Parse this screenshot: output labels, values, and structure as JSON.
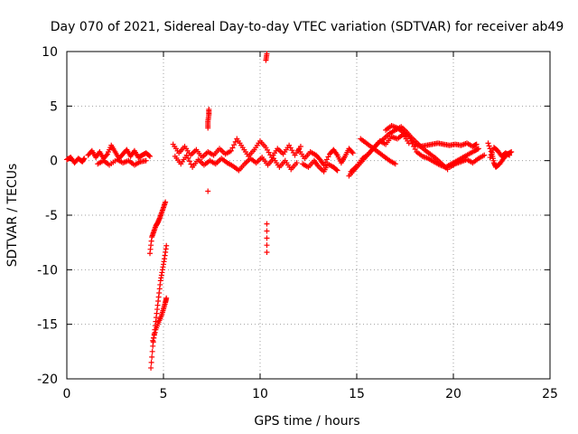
{
  "chart_data": {
    "type": "scatter",
    "title": "Day 070 of 2021, Sidereal Day-to-day VTEC variation (SDTVAR) for receiver ab49",
    "xlabel": "GPS time / hours",
    "ylabel": "SDTVAR / TECUs",
    "xlim": [
      0,
      25
    ],
    "ylim": [
      -20,
      10
    ],
    "x_ticks": [
      "0",
      "5",
      "10",
      "15",
      "20",
      "25"
    ],
    "y_ticks": [
      "-20",
      "-15",
      "-10",
      "-5",
      "0",
      "5",
      "10"
    ],
    "grid": true,
    "legend": "none",
    "marker": "plus",
    "colors": {
      "series": "#ff0000",
      "grid": "#a0a0a0",
      "axis": "#000000"
    },
    "series": [
      {
        "segments": [
          [
            [
              0.0,
              0.1
            ],
            [
              0.2,
              0.3
            ],
            [
              0.4,
              -0.2
            ],
            [
              0.6,
              0.2
            ],
            [
              0.8,
              -0.1
            ],
            [
              0.9,
              0.2
            ]
          ],
          [
            [
              1.1,
              0.5
            ],
            [
              1.3,
              0.9
            ],
            [
              1.5,
              0.3
            ],
            [
              1.7,
              0.8
            ],
            [
              1.9,
              0.2
            ],
            [
              2.1,
              0.6
            ],
            [
              2.3,
              1.4
            ],
            [
              2.5,
              0.8
            ],
            [
              2.7,
              0.2
            ],
            [
              2.9,
              0.6
            ],
            [
              3.1,
              1.0
            ],
            [
              3.3,
              0.4
            ],
            [
              3.5,
              0.9
            ],
            [
              3.7,
              0.3
            ],
            [
              3.9,
              0.5
            ],
            [
              4.1,
              0.7
            ],
            [
              4.3,
              0.4
            ]
          ],
          [
            [
              1.6,
              -0.3
            ],
            [
              1.9,
              0.0
            ],
            [
              2.2,
              -0.4
            ],
            [
              2.6,
              0.1
            ],
            [
              2.9,
              -0.2
            ],
            [
              3.2,
              0.0
            ],
            [
              3.5,
              -0.4
            ],
            [
              3.8,
              -0.1
            ],
            [
              4.1,
              0.0
            ]
          ],
          [
            [
              4.3,
              -8.5
            ],
            [
              4.4,
              -7.0
            ],
            [
              4.5,
              -6.5
            ],
            [
              4.6,
              -6.0
            ],
            [
              4.7,
              -5.7
            ],
            [
              4.8,
              -5.3
            ],
            [
              4.9,
              -4.8
            ],
            [
              5.0,
              -4.3
            ],
            [
              5.1,
              -3.8
            ]
          ],
          [
            [
              4.35,
              -19.0
            ],
            [
              4.45,
              -17.0
            ],
            [
              4.55,
              -15.5
            ],
            [
              4.65,
              -14.0
            ],
            [
              4.75,
              -12.5
            ],
            [
              4.85,
              -11.0
            ],
            [
              4.95,
              -10.0
            ],
            [
              5.05,
              -9.0
            ],
            [
              5.15,
              -7.8
            ]
          ],
          [
            [
              4.45,
              -16.5
            ],
            [
              4.6,
              -15.5
            ],
            [
              4.75,
              -14.8
            ],
            [
              4.9,
              -14.2
            ],
            [
              5.0,
              -13.6
            ],
            [
              5.1,
              -13.0
            ],
            [
              5.15,
              -12.6
            ]
          ],
          [
            [
              5.5,
              1.5
            ],
            [
              5.8,
              0.7
            ],
            [
              6.1,
              1.3
            ],
            [
              6.4,
              0.5
            ],
            [
              6.7,
              1.0
            ],
            [
              7.0,
              0.3
            ],
            [
              7.3,
              0.8
            ],
            [
              7.6,
              0.5
            ],
            [
              7.9,
              1.1
            ],
            [
              8.2,
              0.6
            ],
            [
              8.5,
              0.9
            ],
            [
              8.8,
              2.0
            ],
            [
              9.1,
              1.2
            ],
            [
              9.4,
              0.4
            ],
            [
              9.7,
              1.0
            ],
            [
              10.0,
              1.8
            ],
            [
              10.3,
              1.2
            ],
            [
              10.6,
              0.3
            ],
            [
              10.9,
              1.1
            ],
            [
              11.2,
              0.6
            ],
            [
              11.5,
              1.4
            ],
            [
              11.8,
              0.5
            ],
            [
              12.1,
              1.3
            ]
          ],
          [
            [
              5.6,
              0.4
            ],
            [
              5.9,
              -0.3
            ],
            [
              6.2,
              0.5
            ],
            [
              6.5,
              -0.6
            ],
            [
              6.8,
              0.1
            ],
            [
              7.1,
              -0.4
            ],
            [
              7.4,
              0.0
            ],
            [
              7.7,
              -0.3
            ],
            [
              8.0,
              0.2
            ],
            [
              8.3,
              -0.2
            ],
            [
              8.6,
              -0.5
            ],
            [
              8.9,
              -0.9
            ],
            [
              9.2,
              -0.3
            ],
            [
              9.5,
              0.2
            ],
            [
              9.8,
              -0.2
            ],
            [
              10.1,
              0.3
            ],
            [
              10.4,
              -0.4
            ],
            [
              10.7,
              0.2
            ],
            [
              11.0,
              -0.6
            ],
            [
              11.3,
              0.0
            ],
            [
              11.6,
              -0.8
            ],
            [
              11.9,
              -0.2
            ]
          ],
          [
            [
              7.3,
              3.0
            ],
            [
              7.3,
              3.6
            ],
            [
              7.35,
              4.2
            ],
            [
              7.35,
              4.7
            ]
          ],
          [
            [
              7.3,
              -2.8
            ]
          ],
          [
            [
              10.3,
              9.2
            ],
            [
              10.35,
              9.8
            ]
          ],
          [
            [
              10.35,
              -5.8
            ],
            [
              10.35,
              -8.4
            ]
          ],
          [
            [
              12.0,
              1.0
            ],
            [
              12.3,
              0.2
            ],
            [
              12.6,
              0.8
            ],
            [
              12.9,
              0.5
            ],
            [
              13.1,
              0.1
            ],
            [
              13.3,
              -0.4
            ],
            [
              13.6,
              0.6
            ],
            [
              13.8,
              1.0
            ],
            [
              14.0,
              0.5
            ],
            [
              14.2,
              -0.2
            ],
            [
              14.4,
              0.4
            ],
            [
              14.6,
              1.1
            ],
            [
              14.8,
              0.7
            ]
          ],
          [
            [
              12.2,
              -0.3
            ],
            [
              12.5,
              -0.6
            ],
            [
              12.8,
              0.0
            ],
            [
              13.0,
              -0.5
            ],
            [
              13.3,
              -1.0
            ],
            [
              13.5,
              -0.3
            ],
            [
              13.8,
              -0.6
            ],
            [
              14.0,
              -0.9
            ]
          ],
          [
            [
              14.6,
              -1.4
            ],
            [
              14.9,
              -0.8
            ],
            [
              15.2,
              -0.2
            ],
            [
              15.5,
              0.4
            ],
            [
              15.8,
              1.0
            ],
            [
              16.1,
              1.6
            ],
            [
              16.4,
              2.0
            ],
            [
              16.7,
              2.5
            ],
            [
              17.0,
              2.8
            ],
            [
              17.3,
              3.1
            ],
            [
              17.6,
              2.6
            ],
            [
              17.9,
              2.0
            ],
            [
              18.2,
              1.5
            ],
            [
              18.5,
              1.0
            ],
            [
              18.8,
              0.6
            ],
            [
              19.1,
              0.2
            ],
            [
              19.4,
              -0.3
            ],
            [
              19.7,
              -0.8
            ]
          ],
          [
            [
              14.7,
              -1.0
            ],
            [
              15.0,
              -0.5
            ],
            [
              15.3,
              0.2
            ],
            [
              15.6,
              0.6
            ],
            [
              15.9,
              1.2
            ],
            [
              16.2,
              1.8
            ],
            [
              16.5,
              1.5
            ],
            [
              16.8,
              2.2
            ],
            [
              17.1,
              2.0
            ],
            [
              17.4,
              2.4
            ],
            [
              17.7,
              1.6
            ]
          ],
          [
            [
              15.2,
              2.0
            ],
            [
              15.5,
              1.6
            ],
            [
              15.8,
              1.2
            ],
            [
              16.1,
              0.8
            ],
            [
              16.4,
              0.4
            ],
            [
              16.7,
              0.0
            ],
            [
              17.0,
              -0.3
            ]
          ],
          [
            [
              16.5,
              2.8
            ],
            [
              16.8,
              3.2
            ],
            [
              17.1,
              3.0
            ],
            [
              17.4,
              2.6
            ],
            [
              17.7,
              2.2
            ],
            [
              18.0,
              1.5
            ],
            [
              18.3,
              1.3
            ],
            [
              18.6,
              1.4
            ],
            [
              18.9,
              1.5
            ],
            [
              19.2,
              1.6
            ],
            [
              19.5,
              1.5
            ],
            [
              19.8,
              1.4
            ],
            [
              20.1,
              1.5
            ],
            [
              20.4,
              1.4
            ],
            [
              20.7,
              1.6
            ],
            [
              21.0,
              1.3
            ],
            [
              21.2,
              1.5
            ]
          ],
          [
            [
              17.8,
              1.8
            ],
            [
              18.1,
              0.8
            ],
            [
              18.4,
              0.4
            ],
            [
              18.7,
              0.2
            ],
            [
              19.0,
              -0.1
            ],
            [
              19.3,
              -0.4
            ],
            [
              19.6,
              -0.6
            ],
            [
              19.9,
              -0.3
            ],
            [
              20.2,
              0.0
            ],
            [
              20.5,
              0.3
            ],
            [
              20.8,
              0.6
            ],
            [
              21.1,
              0.9
            ],
            [
              21.3,
              1.1
            ]
          ],
          [
            [
              19.8,
              -0.6
            ],
            [
              20.1,
              -0.3
            ],
            [
              20.4,
              -0.1
            ],
            [
              20.7,
              0.1
            ],
            [
              21.0,
              -0.2
            ],
            [
              21.3,
              0.2
            ],
            [
              21.6,
              0.5
            ]
          ],
          [
            [
              21.8,
              1.6
            ],
            [
              22.0,
              0.6
            ],
            [
              22.1,
              -0.2
            ],
            [
              22.2,
              -0.6
            ],
            [
              22.4,
              -0.3
            ],
            [
              22.6,
              0.2
            ],
            [
              22.8,
              0.6
            ],
            [
              23.0,
              0.8
            ]
          ],
          [
            [
              21.9,
              0.3
            ],
            [
              22.1,
              1.2
            ],
            [
              22.3,
              0.9
            ],
            [
              22.5,
              0.4
            ],
            [
              22.7,
              0.7
            ],
            [
              22.9,
              0.5
            ]
          ]
        ]
      }
    ]
  }
}
